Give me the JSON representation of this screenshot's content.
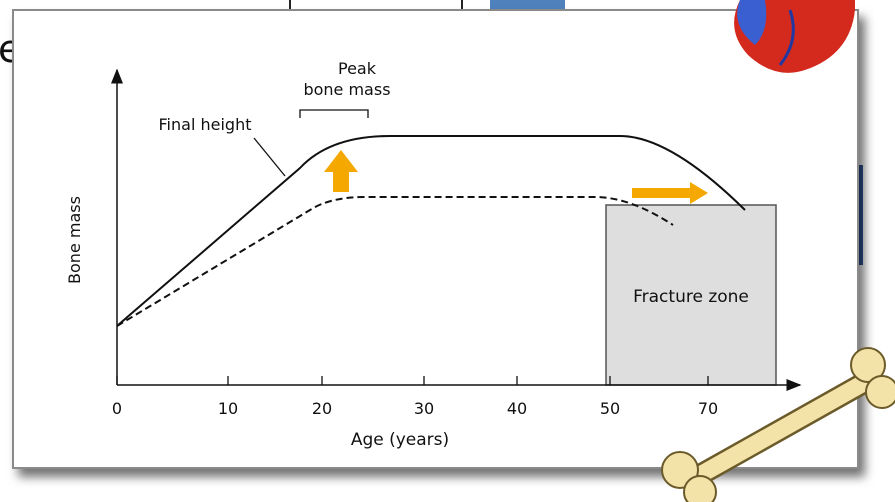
{
  "slide_fragment": "e",
  "diagram": {
    "peak_label": [
      "Peak",
      "bone mass"
    ],
    "final_height_label": "Final height",
    "y_axis_label": "Bone mass",
    "x_axis_label": "Age (years)",
    "x_tick_labels": [
      "0",
      "10",
      "20",
      "30",
      "40",
      "50",
      "70"
    ],
    "zone_label": "Fracture zone"
  }
}
